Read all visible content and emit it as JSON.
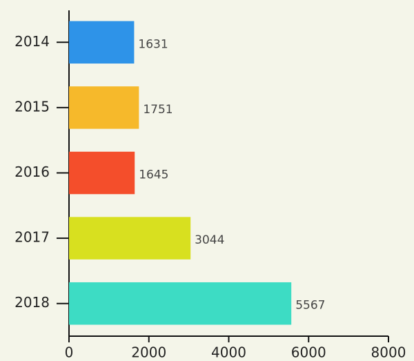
{
  "chart_data": {
    "type": "bar",
    "orientation": "horizontal",
    "categories": [
      "2014",
      "2015",
      "2016",
      "2017",
      "2018"
    ],
    "values": [
      1631,
      1751,
      1645,
      3044,
      5567
    ],
    "colors": [
      "#2e93e8",
      "#f6b92b",
      "#f44e2b",
      "#d8e01f",
      "#3ddcc4"
    ],
    "xlim": [
      0,
      8000
    ],
    "xticks": [
      0,
      2000,
      4000,
      6000,
      8000
    ],
    "grid": false
  }
}
